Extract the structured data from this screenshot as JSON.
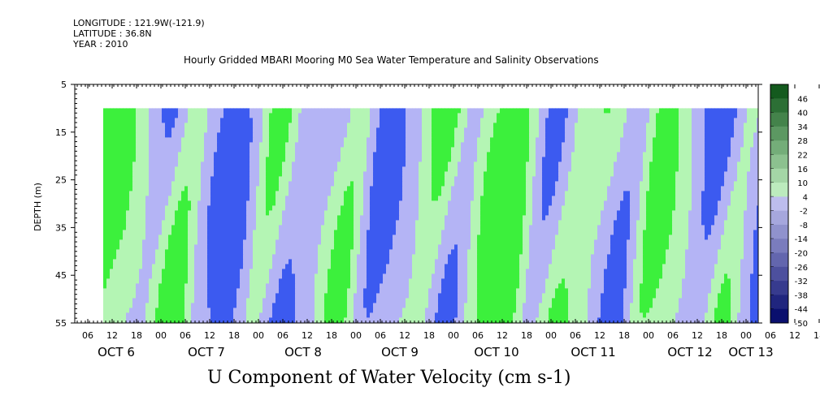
{
  "meta": {
    "longitude": "LONGITUDE : 121.9W(-121.9)",
    "latitude": "LATITUDE : 36.8N",
    "year": "YEAR : 2010"
  },
  "chart_data": {
    "type": "heatmap",
    "title": "Hourly Gridded MBARI Mooring M0 Sea Water Temperature and Salinity Observations",
    "xlabel": "U Component of Water Velocity (cm s-1)",
    "ylabel": "DEPTH (m)",
    "ylim": [
      5,
      55
    ],
    "y_inverted": true,
    "yticks": [
      5,
      15,
      25,
      35,
      45,
      55
    ],
    "x_hour_ticks": [
      "06",
      "12",
      "18",
      "00",
      "06",
      "12",
      "18",
      "00",
      "06",
      "12",
      "18",
      "00",
      "06",
      "12",
      "18",
      "00",
      "06",
      "12",
      "18",
      "00",
      "06",
      "12",
      "18",
      "00",
      "06",
      "12",
      "18",
      "00",
      "06",
      "12",
      "18",
      "00"
    ],
    "x_day_labels": [
      "OCT  6",
      "OCT  7",
      "OCT  8",
      "OCT  9",
      "OCT 10",
      "OCT 11",
      "OCT 12",
      "OCT 13"
    ],
    "data_depth_range": [
      10,
      55
    ],
    "colorbar_levels": [
      "46",
      "40",
      "34",
      "28",
      "22",
      "16",
      "10",
      "4",
      "-2",
      "-8",
      "-14",
      "-20",
      "-26",
      "-32",
      "-38",
      "-44",
      "-50"
    ],
    "colorbar_range": [
      -50,
      52
    ],
    "colors": {
      "positive": "#3cf03c",
      "positive_light": "#b4f5b4",
      "negative_light": "#b4b4f5",
      "negative": "#3c5af0"
    }
  }
}
